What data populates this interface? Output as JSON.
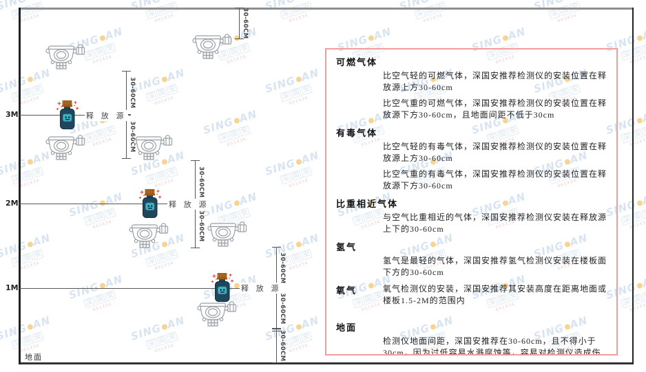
{
  "diagram": {
    "heights": [
      "3M",
      "2M",
      "1M"
    ],
    "ground_label": "地面",
    "release_source_label": "释 放 源",
    "dim_label": "30-60CM"
  },
  "watermark": {
    "logo_left": "SING",
    "logo_right": "AN",
    "sub": "深国安",
    "tiny": "661434"
  },
  "panel": {
    "sections": [
      {
        "heading": "可燃气体",
        "paragraphs": [
          "比空气轻的可燃气体，深国安推荐检测仪的安装位置在释放源上方30-60cm",
          "比空气重的可燃气体，深国安推荐检测仪的安装位置在释放源下方30-60cm，且地面间距不低于30cm"
        ]
      },
      {
        "heading": "有毒气体",
        "paragraphs": [
          "比空气轻的有毒气体，深国安推荐检测仪的安装位置在释放源上方30-60cm",
          "比空气重的有毒气体，深国安推荐检测仪的安装位置在释放源下方30-60cm"
        ]
      },
      {
        "heading": "比重相近气体",
        "paragraphs": [
          "与空气比重相近的气体，深国安推荐检测仪安装在释放源上下的30-60cm"
        ]
      },
      {
        "heading": "氢气",
        "paragraphs": [
          "氢气是最轻的气体，深国安推荐氢气检测仪安装在楼板面下方的30-60cm"
        ]
      },
      {
        "heading": "氧气",
        "paragraphs": [
          "氧气检测仪的安装，深国安推荐其安装高度在距离地面或楼板1.5-2M的范围内"
        ]
      },
      {
        "heading": "地面",
        "paragraphs": [
          "检测仪地面间距，深国安推荐在30-60cm，且不得小于30cm，因为过低容易水溅腐蚀等，容易对检测仪造成伤害"
        ]
      }
    ]
  },
  "colors": {
    "panel_border": "#f49c9c",
    "watermark_blue": "#b9cfe8",
    "watermark_dot_orange": "#f2b13e",
    "bottle_navy": "#20465e",
    "bottle_cap_orange": "#b96f22",
    "emblem_teal": "#3fb4c2",
    "sparkle_red": "#e0524f",
    "line_gray": "#555555"
  }
}
